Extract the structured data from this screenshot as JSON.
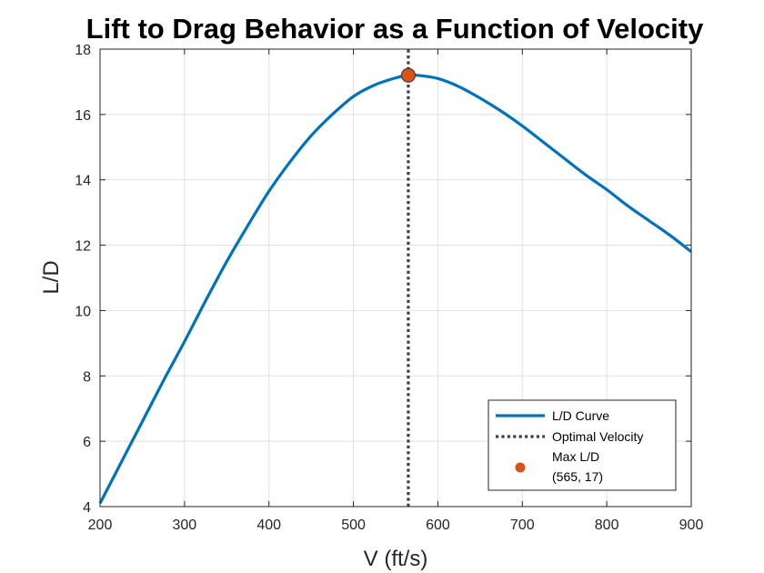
{
  "chart_data": {
    "type": "line",
    "title": "Lift to Drag Behavior as a Function of Velocity",
    "xlabel": "V (ft/s)",
    "ylabel": "L/D",
    "xlim": [
      200,
      900
    ],
    "ylim": [
      4,
      18
    ],
    "xticks": [
      200,
      300,
      400,
      500,
      600,
      700,
      800,
      900
    ],
    "yticks": [
      4,
      6,
      8,
      10,
      12,
      14,
      16,
      18
    ],
    "grid": true,
    "legend_position": "bottom-right",
    "series": [
      {
        "name": "L/D Curve",
        "style": "solid",
        "color": "#0072BD",
        "x": [
          200,
          225,
          250,
          275,
          300,
          325,
          350,
          375,
          400,
          425,
          450,
          475,
          500,
          525,
          550,
          565,
          575,
          600,
          625,
          650,
          675,
          700,
          725,
          750,
          775,
          800,
          825,
          850,
          875,
          900
        ],
        "y": [
          4.1,
          5.35,
          6.6,
          7.85,
          9.05,
          10.3,
          11.5,
          12.6,
          13.65,
          14.55,
          15.35,
          16.0,
          16.55,
          16.9,
          17.12,
          17.2,
          17.2,
          17.1,
          16.85,
          16.5,
          16.1,
          15.65,
          15.15,
          14.65,
          14.15,
          13.7,
          13.2,
          12.75,
          12.3,
          11.8
        ]
      },
      {
        "name": "Optimal Velocity",
        "style": "dotted",
        "color": "#404040",
        "x": [
          565,
          565
        ],
        "y": [
          4,
          18
        ]
      },
      {
        "name": "Max L/D",
        "style": "marker",
        "color": "#D95319",
        "x": [
          565
        ],
        "y": [
          17.2
        ],
        "label": "(565, 17)"
      }
    ]
  }
}
